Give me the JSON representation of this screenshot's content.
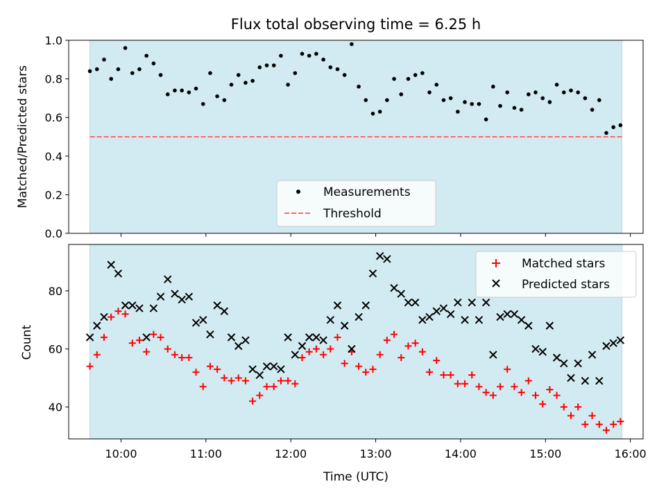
{
  "figure": {
    "title": "Flux total observing time = 6.25 h",
    "xlabel": "Time (UTC)",
    "x_tick_labels": [
      "10:00",
      "11:00",
      "12:00",
      "13:00",
      "14:00",
      "15:00",
      "16:00"
    ]
  },
  "colors": {
    "shade": "#add8e6",
    "threshold": "#ff6666",
    "measurements": "#000000",
    "matched": "#ff0000",
    "predicted": "#000000"
  },
  "chart_data": [
    {
      "type": "scatter",
      "ylabel": "Matched/Predicted stars",
      "xlim": [
        "09:23",
        "16:09"
      ],
      "ylim": [
        0,
        1.0
      ],
      "yticks": [
        "0.0",
        "0.2",
        "0.4",
        "0.6",
        "0.8",
        "1.0"
      ],
      "shaded_span": [
        "09:38",
        "15:54"
      ],
      "threshold": 0.5,
      "legend_position": "lower-center",
      "series": [
        {
          "name": "Measurements",
          "marker": "dot",
          "x": [
            "09:38",
            "09:43",
            "09:48",
            "09:53",
            "09:58",
            "10:03",
            "10:08",
            "10:13",
            "10:18",
            "10:23",
            "10:28",
            "10:33",
            "10:38",
            "10:43",
            "10:48",
            "10:53",
            "10:58",
            "11:03",
            "11:08",
            "11:13",
            "11:18",
            "11:23",
            "11:28",
            "11:33",
            "11:38",
            "11:43",
            "11:48",
            "11:53",
            "11:58",
            "12:03",
            "12:08",
            "12:13",
            "12:18",
            "12:23",
            "12:28",
            "12:33",
            "12:38",
            "12:43",
            "12:48",
            "12:53",
            "12:58",
            "13:03",
            "13:08",
            "13:13",
            "13:18",
            "13:23",
            "13:28",
            "13:33",
            "13:38",
            "13:43",
            "13:48",
            "13:53",
            "13:58",
            "14:03",
            "14:08",
            "14:13",
            "14:18",
            "14:23",
            "14:28",
            "14:33",
            "14:38",
            "14:43",
            "14:48",
            "14:53",
            "14:58",
            "15:03",
            "15:08",
            "15:13",
            "15:18",
            "15:23",
            "15:28",
            "15:33",
            "15:38",
            "15:43",
            "15:48",
            "15:53"
          ],
          "y": [
            0.84,
            0.85,
            0.9,
            0.8,
            0.85,
            0.96,
            0.83,
            0.85,
            0.92,
            0.88,
            0.82,
            0.72,
            0.74,
            0.74,
            0.73,
            0.75,
            0.67,
            0.83,
            0.71,
            0.69,
            0.77,
            0.82,
            0.78,
            0.79,
            0.86,
            0.87,
            0.87,
            0.92,
            0.77,
            0.83,
            0.93,
            0.92,
            0.93,
            0.9,
            0.86,
            0.85,
            0.82,
            0.98,
            0.76,
            0.69,
            0.62,
            0.63,
            0.69,
            0.8,
            0.72,
            0.8,
            0.82,
            0.83,
            0.73,
            0.77,
            0.69,
            0.7,
            0.63,
            0.68,
            0.67,
            0.67,
            0.59,
            0.76,
            0.66,
            0.73,
            0.65,
            0.64,
            0.72,
            0.73,
            0.7,
            0.68,
            0.77,
            0.73,
            0.74,
            0.73,
            0.7,
            0.64,
            0.69,
            0.52,
            0.55,
            0.56
          ]
        },
        {
          "name": "Threshold",
          "style": "dashed"
        }
      ]
    },
    {
      "type": "scatter",
      "ylabel": "Count",
      "xlim": [
        "09:23",
        "16:09"
      ],
      "ylim": [
        29,
        96
      ],
      "yticks": [
        "40",
        "60",
        "80"
      ],
      "shaded_span": [
        "09:38",
        "15:54"
      ],
      "legend_position": "upper-right",
      "series": [
        {
          "name": "Matched stars",
          "marker": "plus",
          "x": [
            "09:38",
            "09:43",
            "09:48",
            "09:53",
            "09:58",
            "10:03",
            "10:08",
            "10:13",
            "10:18",
            "10:23",
            "10:28",
            "10:33",
            "10:38",
            "10:43",
            "10:48",
            "10:53",
            "10:58",
            "11:03",
            "11:08",
            "11:13",
            "11:18",
            "11:23",
            "11:28",
            "11:33",
            "11:38",
            "11:43",
            "11:48",
            "11:53",
            "11:58",
            "12:03",
            "12:08",
            "12:13",
            "12:18",
            "12:23",
            "12:28",
            "12:33",
            "12:38",
            "12:43",
            "12:48",
            "12:53",
            "12:58",
            "13:03",
            "13:08",
            "13:13",
            "13:18",
            "13:23",
            "13:28",
            "13:33",
            "13:38",
            "13:43",
            "13:48",
            "13:53",
            "13:58",
            "14:03",
            "14:08",
            "14:13",
            "14:18",
            "14:23",
            "14:28",
            "14:33",
            "14:38",
            "14:43",
            "14:48",
            "14:53",
            "14:58",
            "15:03",
            "15:08",
            "15:13",
            "15:18",
            "15:23",
            "15:28",
            "15:33",
            "15:38",
            "15:43",
            "15:48",
            "15:53"
          ],
          "y": [
            54,
            58,
            64,
            71,
            73,
            72,
            62,
            63,
            59,
            65,
            64,
            60,
            58,
            57,
            57,
            52,
            47,
            54,
            53,
            50,
            49,
            50,
            49,
            42,
            44,
            47,
            47,
            49,
            49,
            48,
            57,
            59,
            60,
            58,
            60,
            64,
            55,
            59,
            54,
            52,
            53,
            58,
            63,
            65,
            57,
            61,
            62,
            59,
            52,
            56,
            51,
            51,
            48,
            48,
            51,
            47,
            45,
            44,
            47,
            53,
            47,
            45,
            49,
            44,
            41,
            46,
            44,
            40,
            37,
            40,
            34,
            37,
            34,
            32,
            34,
            35
          ]
        },
        {
          "name": "Predicted stars",
          "marker": "x",
          "x": [
            "09:38",
            "09:43",
            "09:48",
            "09:53",
            "09:58",
            "10:03",
            "10:08",
            "10:13",
            "10:18",
            "10:23",
            "10:28",
            "10:33",
            "10:38",
            "10:43",
            "10:48",
            "10:53",
            "10:58",
            "11:03",
            "11:08",
            "11:13",
            "11:18",
            "11:23",
            "11:28",
            "11:33",
            "11:38",
            "11:43",
            "11:48",
            "11:53",
            "11:58",
            "12:03",
            "12:08",
            "12:13",
            "12:18",
            "12:23",
            "12:28",
            "12:33",
            "12:38",
            "12:43",
            "12:48",
            "12:53",
            "12:58",
            "13:03",
            "13:08",
            "13:13",
            "13:18",
            "13:23",
            "13:28",
            "13:33",
            "13:38",
            "13:43",
            "13:48",
            "13:53",
            "13:58",
            "14:03",
            "14:08",
            "14:13",
            "14:18",
            "14:23",
            "14:28",
            "14:33",
            "14:38",
            "14:43",
            "14:48",
            "14:53",
            "14:58",
            "15:03",
            "15:08",
            "15:13",
            "15:18",
            "15:23",
            "15:28",
            "15:33",
            "15:38",
            "15:43",
            "15:48",
            "15:53"
          ],
          "y": [
            64,
            68,
            71,
            89,
            86,
            75,
            75,
            74,
            64,
            74,
            78,
            84,
            79,
            77,
            78,
            69,
            70,
            65,
            75,
            73,
            64,
            61,
            63,
            53,
            51,
            54,
            54,
            53,
            64,
            58,
            61,
            64,
            64,
            63,
            70,
            75,
            68,
            60,
            71,
            75,
            86,
            92,
            91,
            81,
            79,
            76,
            76,
            70,
            71,
            73,
            74,
            72,
            76,
            70,
            76,
            70,
            76,
            58,
            71,
            72,
            72,
            70,
            68,
            60,
            59,
            68,
            57,
            55,
            50,
            55,
            49,
            58,
            49,
            61,
            62,
            63
          ]
        }
      ]
    }
  ]
}
